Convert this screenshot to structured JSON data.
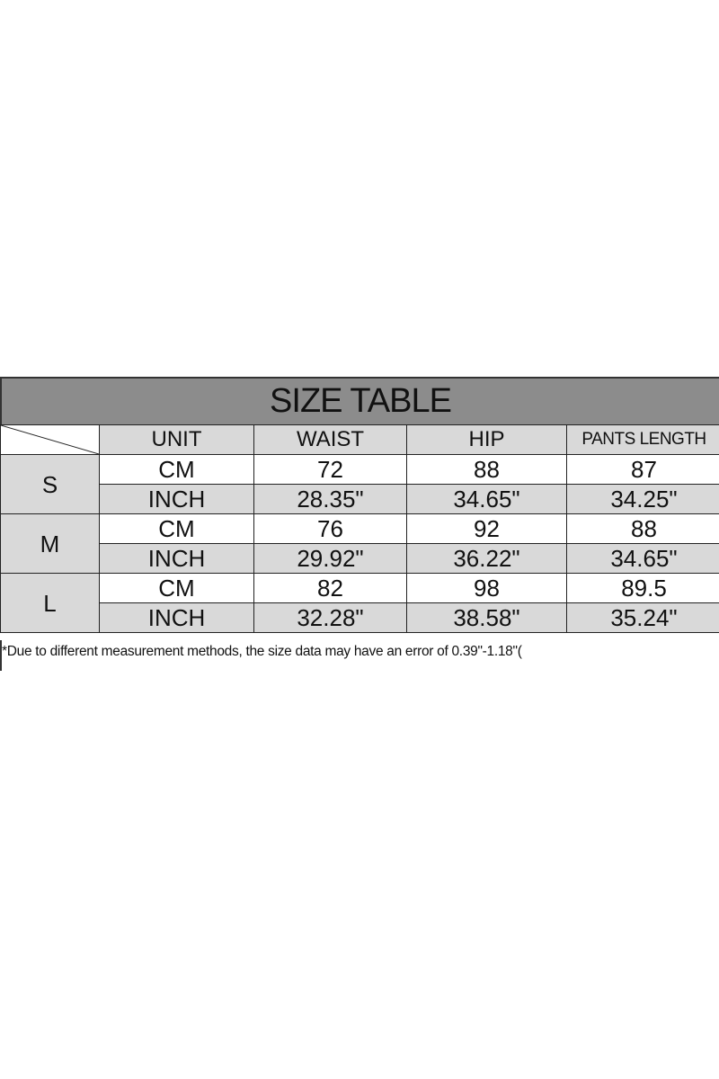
{
  "title": "SIZE TABLE",
  "columns": [
    "UNIT",
    "WAIST",
    "HIP",
    "PANTS LENGTH"
  ],
  "rows": [
    {
      "size": "S",
      "cm": {
        "unit": "CM",
        "waist": "72",
        "hip": "88",
        "length": "87"
      },
      "inch": {
        "unit": "INCH",
        "waist": "28.35\"",
        "hip": "34.65\"",
        "length": "34.25\""
      }
    },
    {
      "size": "M",
      "cm": {
        "unit": "CM",
        "waist": "76",
        "hip": "92",
        "length": "88"
      },
      "inch": {
        "unit": "INCH",
        "waist": "29.92\"",
        "hip": "36.22\"",
        "length": "34.65\""
      }
    },
    {
      "size": "L",
      "cm": {
        "unit": "CM",
        "waist": "82",
        "hip": "98",
        "length": "89.5"
      },
      "inch": {
        "unit": "INCH",
        "waist": "32.28\"",
        "hip": "38.58\"",
        "length": "35.24\""
      }
    }
  ],
  "note": "*Due to different measurement methods, the size data may have an error of 0.39\"-1.18\"(",
  "colors": {
    "title_bg": "#8c8c8c",
    "cell_gray": "#d9d9d9"
  }
}
